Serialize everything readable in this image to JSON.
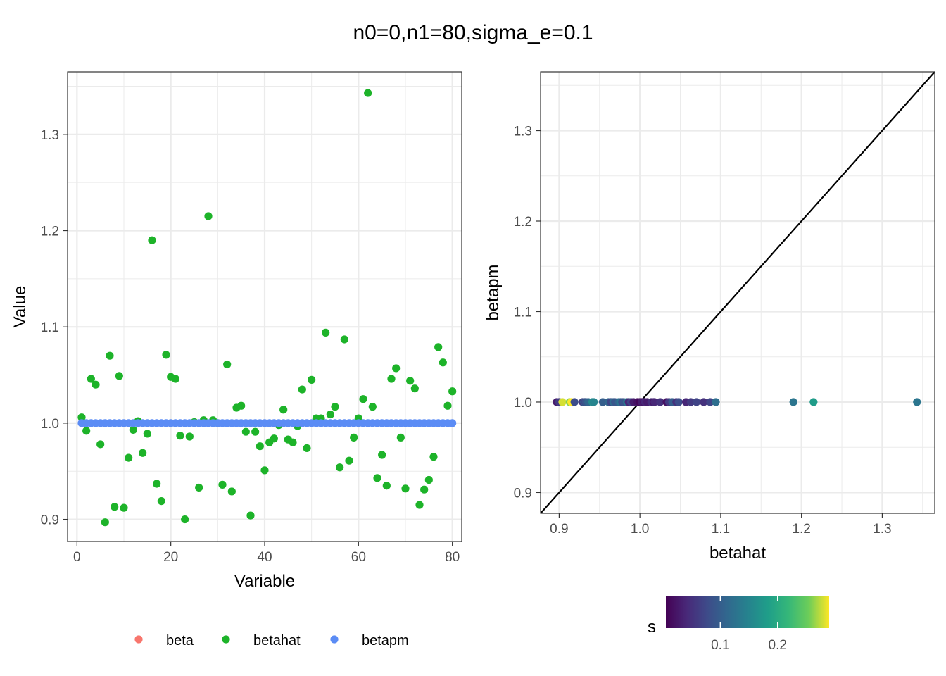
{
  "title": "n0=0,n1=80,sigma_e=0.1",
  "colors": {
    "beta": "#F8766D",
    "betahat": "#1DB329",
    "betapm": "#5B8CF5",
    "grid": "#EBEBEB",
    "frame": "#333333"
  },
  "chart_data": [
    {
      "type": "scatter",
      "xlabel": "Variable",
      "ylabel": "Value",
      "xlim": [
        -2,
        82
      ],
      "ylim": [
        0.877,
        1.365
      ],
      "xticks": [
        0,
        20,
        40,
        60,
        80
      ],
      "xtick_labels": [
        "0",
        "20",
        "40",
        "60",
        "80"
      ],
      "yticks": [
        0.9,
        1.0,
        1.1,
        1.2,
        1.3
      ],
      "ytick_labels": [
        "0.9",
        "1.0",
        "1.1",
        "1.2",
        "1.3"
      ],
      "grid": true,
      "legend_position": "bottom",
      "series": [
        {
          "name": "beta",
          "x": [],
          "values": []
        },
        {
          "name": "betahat",
          "x": [
            1,
            2,
            3,
            4,
            5,
            6,
            7,
            8,
            9,
            10,
            11,
            12,
            13,
            14,
            15,
            16,
            17,
            18,
            19,
            20,
            21,
            22,
            23,
            24,
            25,
            26,
            27,
            28,
            29,
            30,
            31,
            32,
            33,
            34,
            35,
            36,
            37,
            38,
            39,
            40,
            41,
            42,
            43,
            44,
            45,
            46,
            47,
            48,
            49,
            50,
            51,
            52,
            53,
            54,
            55,
            56,
            57,
            58,
            59,
            60,
            61,
            62,
            63,
            64,
            65,
            66,
            67,
            68,
            69,
            70,
            71,
            72,
            73,
            74,
            75,
            76,
            77,
            78,
            79,
            80
          ],
          "values": [
            1.006,
            0.992,
            1.046,
            1.04,
            0.978,
            0.897,
            1.07,
            0.913,
            1.049,
            0.912,
            0.964,
            0.993,
            1.002,
            0.969,
            0.989,
            1.19,
            0.937,
            0.919,
            1.071,
            1.048,
            1.046,
            0.987,
            0.9,
            0.986,
            1.001,
            0.933,
            1.003,
            1.215,
            1.003,
            1.0,
            0.936,
            1.061,
            0.929,
            1.016,
            1.018,
            0.991,
            0.904,
            0.991,
            0.976,
            0.951,
            0.98,
            0.984,
            0.998,
            1.014,
            0.983,
            0.98,
            0.997,
            1.035,
            0.974,
            1.045,
            1.005,
            1.005,
            1.094,
            1.009,
            1.017,
            0.954,
            1.087,
            0.961,
            0.985,
            1.005,
            1.025,
            1.343,
            1.017,
            0.943,
            0.967,
            0.935,
            1.046,
            1.057,
            0.985,
            0.932,
            1.044,
            1.036,
            0.915,
            0.931,
            0.941,
            0.965,
            1.079,
            1.063,
            1.018,
            1.033
          ]
        },
        {
          "name": "betapm",
          "x": [
            1,
            2,
            3,
            4,
            5,
            6,
            7,
            8,
            9,
            10,
            11,
            12,
            13,
            14,
            15,
            16,
            17,
            18,
            19,
            20,
            21,
            22,
            23,
            24,
            25,
            26,
            27,
            28,
            29,
            30,
            31,
            32,
            33,
            34,
            35,
            36,
            37,
            38,
            39,
            40,
            41,
            42,
            43,
            44,
            45,
            46,
            47,
            48,
            49,
            50,
            51,
            52,
            53,
            54,
            55,
            56,
            57,
            58,
            59,
            60,
            61,
            62,
            63,
            64,
            65,
            66,
            67,
            68,
            69,
            70,
            71,
            72,
            73,
            74,
            75,
            76,
            77,
            78,
            79,
            80
          ],
          "values": [
            1,
            1,
            1,
            1,
            1,
            1,
            1,
            1,
            1,
            1,
            1,
            1,
            1,
            1,
            1,
            1,
            1,
            1,
            1,
            1,
            1,
            1,
            1,
            1,
            1,
            1,
            1,
            1,
            1,
            1,
            1,
            1,
            1,
            1,
            1,
            1,
            1,
            1,
            1,
            1,
            1,
            1,
            1,
            1,
            1,
            1,
            1,
            1,
            1,
            1,
            1,
            1,
            1,
            1,
            1,
            1,
            1,
            1,
            1,
            1,
            1,
            1,
            1,
            1,
            1,
            1,
            1,
            1,
            1,
            1,
            1,
            1,
            1,
            1,
            1,
            1,
            1,
            1,
            1,
            1
          ]
        }
      ]
    },
    {
      "type": "scatter",
      "xlabel": "betahat",
      "ylabel": "betapm",
      "xlim": [
        0.877,
        1.365
      ],
      "ylim": [
        0.877,
        1.365
      ],
      "xticks": [
        0.9,
        1.0,
        1.1,
        1.2,
        1.3
      ],
      "xtick_labels": [
        "0.9",
        "1.0",
        "1.1",
        "1.2",
        "1.3"
      ],
      "yticks": [
        0.9,
        1.0,
        1.1,
        1.2,
        1.3
      ],
      "ytick_labels": [
        "0.9",
        "1.0",
        "1.1",
        "1.2",
        "1.3"
      ],
      "grid": true,
      "reference_line": "y = x",
      "color_scale": {
        "name": "s",
        "palette": "viridis",
        "range": [
          0.005,
          0.29
        ],
        "ticks": [
          0.1,
          0.2
        ],
        "tick_labels": [
          "0.1",
          "0.2"
        ]
      },
      "points": [
        {
          "x": 0.897,
          "y": 1.0,
          "s": 0.03
        },
        {
          "x": 0.9,
          "y": 1.0,
          "s": 0.06
        },
        {
          "x": 0.904,
          "y": 1.0,
          "s": 0.28
        },
        {
          "x": 0.913,
          "y": 1.0,
          "s": 0.26
        },
        {
          "x": 0.915,
          "y": 1.0,
          "s": 0.29
        },
        {
          "x": 0.919,
          "y": 1.0,
          "s": 0.08
        },
        {
          "x": 0.929,
          "y": 1.0,
          "s": 0.06
        },
        {
          "x": 0.931,
          "y": 1.0,
          "s": 0.12
        },
        {
          "x": 0.932,
          "y": 1.0,
          "s": 0.07
        },
        {
          "x": 0.933,
          "y": 1.0,
          "s": 0.09
        },
        {
          "x": 0.936,
          "y": 1.0,
          "s": 0.11
        },
        {
          "x": 0.941,
          "y": 1.0,
          "s": 0.16
        },
        {
          "x": 0.943,
          "y": 1.0,
          "s": 0.15
        },
        {
          "x": 0.954,
          "y": 1.0,
          "s": 0.1
        },
        {
          "x": 0.961,
          "y": 1.0,
          "s": 0.11
        },
        {
          "x": 0.964,
          "y": 1.0,
          "s": 0.07
        },
        {
          "x": 0.967,
          "y": 1.0,
          "s": 0.12
        },
        {
          "x": 0.969,
          "y": 1.0,
          "s": 0.09
        },
        {
          "x": 0.974,
          "y": 1.0,
          "s": 0.11
        },
        {
          "x": 0.976,
          "y": 1.0,
          "s": 0.13
        },
        {
          "x": 0.978,
          "y": 1.0,
          "s": 0.08
        },
        {
          "x": 0.98,
          "y": 1.0,
          "s": 0.09
        },
        {
          "x": 0.984,
          "y": 1.0,
          "s": 0.14
        },
        {
          "x": 0.986,
          "y": 1.0,
          "s": 0.04
        },
        {
          "x": 0.989,
          "y": 1.0,
          "s": 0.07
        },
        {
          "x": 0.992,
          "y": 1.0,
          "s": 0.03
        },
        {
          "x": 0.997,
          "y": 1.0,
          "s": 0.02
        },
        {
          "x": 1.0,
          "y": 1.0,
          "s": 0.01
        },
        {
          "x": 1.002,
          "y": 1.0,
          "s": 0.03
        },
        {
          "x": 1.005,
          "y": 1.0,
          "s": 0.02
        },
        {
          "x": 1.006,
          "y": 1.0,
          "s": 0.04
        },
        {
          "x": 1.009,
          "y": 1.0,
          "s": 0.03
        },
        {
          "x": 1.014,
          "y": 1.0,
          "s": 0.05
        },
        {
          "x": 1.017,
          "y": 1.0,
          "s": 0.02
        },
        {
          "x": 1.018,
          "y": 1.0,
          "s": 0.04
        },
        {
          "x": 1.025,
          "y": 1.0,
          "s": 0.05
        },
        {
          "x": 1.033,
          "y": 1.0,
          "s": 0.02
        },
        {
          "x": 1.036,
          "y": 1.0,
          "s": 0.06
        },
        {
          "x": 1.04,
          "y": 1.0,
          "s": 0.1
        },
        {
          "x": 1.045,
          "y": 1.0,
          "s": 0.05
        },
        {
          "x": 1.048,
          "y": 1.0,
          "s": 0.08
        },
        {
          "x": 1.057,
          "y": 1.0,
          "s": 0.04
        },
        {
          "x": 1.063,
          "y": 1.0,
          "s": 0.06
        },
        {
          "x": 1.07,
          "y": 1.0,
          "s": 0.07
        },
        {
          "x": 1.079,
          "y": 1.0,
          "s": 0.05
        },
        {
          "x": 1.087,
          "y": 1.0,
          "s": 0.07
        },
        {
          "x": 1.094,
          "y": 1.0,
          "s": 0.12
        },
        {
          "x": 1.19,
          "y": 1.0,
          "s": 0.13
        },
        {
          "x": 1.215,
          "y": 1.0,
          "s": 0.18
        },
        {
          "x": 1.343,
          "y": 1.0,
          "s": 0.13
        }
      ]
    }
  ],
  "legend": {
    "items": [
      {
        "label": "beta",
        "color": "#F8766D"
      },
      {
        "label": "betahat",
        "color": "#1DB329"
      },
      {
        "label": "betapm",
        "color": "#5B8CF5"
      }
    ]
  }
}
